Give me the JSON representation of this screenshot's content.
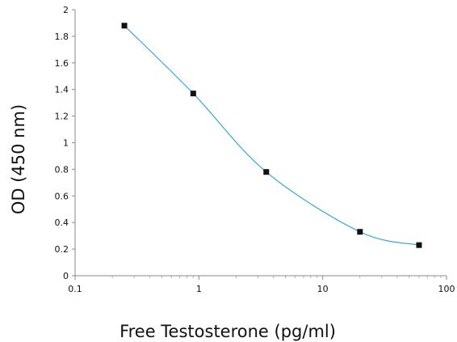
{
  "chart_data": {
    "type": "scatter",
    "title": "",
    "xlabel": "Free Testosterone (pg/ml)",
    "ylabel": "OD (450 nm)",
    "x_scale": "log",
    "xlim": [
      0.1,
      100
    ],
    "ylim": [
      0,
      2
    ],
    "x_tick_labels": [
      "0.1",
      "1",
      "10",
      "100"
    ],
    "y_tick_labels": [
      "0",
      "0.2",
      "0.4",
      "0.6",
      "0.8",
      "1",
      "1.2",
      "1.4",
      "1.6",
      "1.8",
      "2"
    ],
    "grid": false,
    "legend": "none",
    "line_color": "#29a3d6",
    "marker_color": "#111111",
    "series": [
      {
        "x": [
          0.25,
          0.9,
          3.5,
          20,
          60
        ],
        "y": [
          1.88,
          1.37,
          0.78,
          0.33,
          0.23
        ]
      }
    ]
  }
}
